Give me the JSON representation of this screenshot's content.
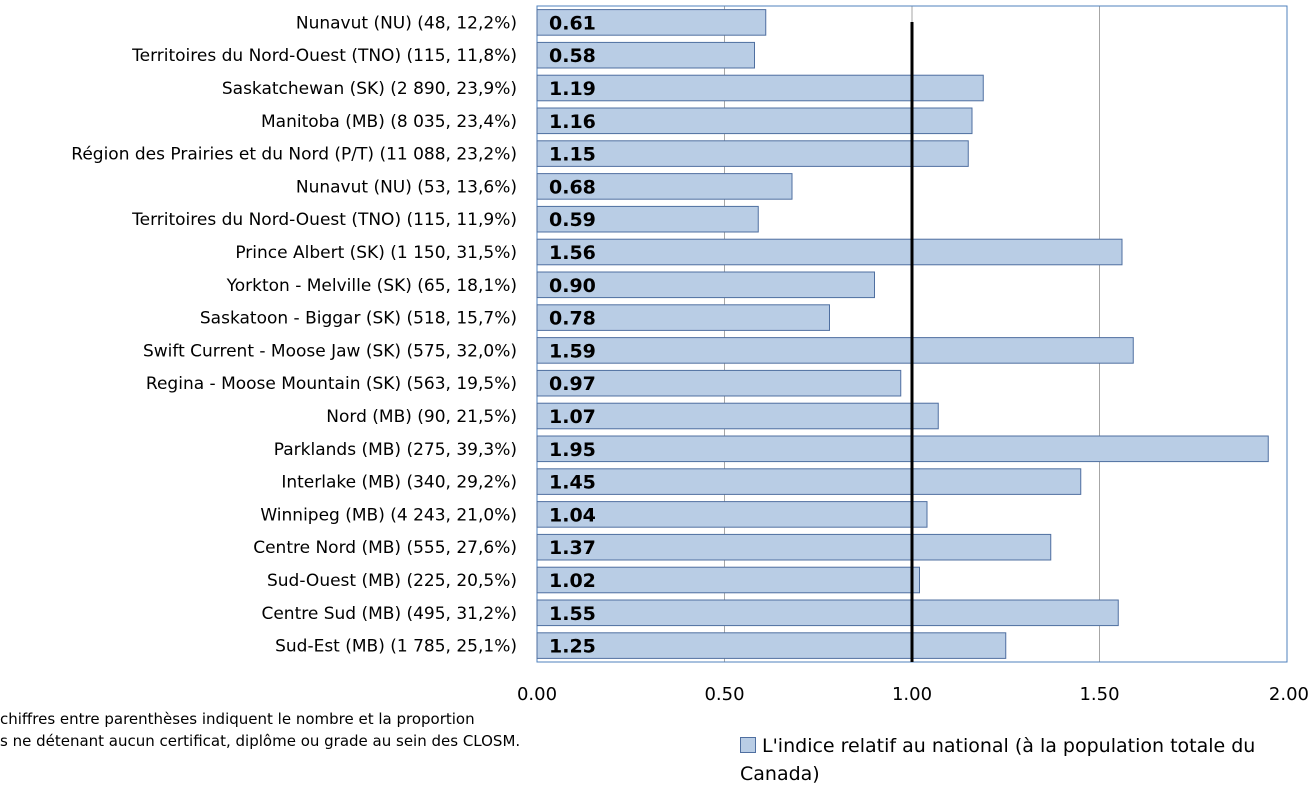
{
  "chart_data": {
    "type": "bar",
    "orientation": "horizontal",
    "categories": [
      "Nunavut (NU) (48, 12,2%)",
      "Territoires du Nord-Ouest (TNO) (115, 11,8%)",
      "Saskatchewan (SK) (2 890, 23,9%)",
      "Manitoba (MB) (8 035, 23,4%)",
      "Région des Prairies et du Nord (P/T) (11 088, 23,2%)",
      "Nunavut (NU) (53, 13,6%)",
      "Territoires du Nord-Ouest (TNO) (115, 11,9%)",
      "Prince Albert (SK) (1 150, 31,5%)",
      "Yorkton - Melville (SK) (65, 18,1%)",
      "Saskatoon - Biggar (SK) (518, 15,7%)",
      "Swift Current - Moose Jaw (SK) (575, 32,0%)",
      "Regina - Moose Mountain (SK) (563, 19,5%)",
      "Nord (MB) (90, 21,5%)",
      "Parklands (MB) (275, 39,3%)",
      "Interlake (MB) (340, 29,2%)",
      "Winnipeg (MB) (4 243, 21,0%)",
      "Centre Nord (MB) (555, 27,6%)",
      "Sud-Ouest (MB) (225, 20,5%)",
      "Centre Sud (MB) (495, 31,2%)",
      "Sud-Est (MB) (1 785, 25,1%)"
    ],
    "values": [
      0.61,
      0.58,
      1.19,
      1.16,
      1.15,
      0.68,
      0.59,
      1.56,
      0.9,
      0.78,
      1.59,
      0.97,
      1.07,
      1.95,
      1.45,
      1.04,
      1.37,
      1.02,
      1.55,
      1.25
    ],
    "value_labels": [
      "0.61",
      "0.58",
      "1.19",
      "1.16",
      "1.15",
      "0.68",
      "0.59",
      "1.56",
      "0.90",
      "0.78",
      "1.59",
      "0.97",
      "1.07",
      "1.95",
      "1.45",
      "1.04",
      "1.37",
      "1.02",
      "1.55",
      "1.25"
    ],
    "xlim": [
      0,
      2
    ],
    "x_ticks": [
      0,
      0.5,
      1,
      1.5,
      2
    ],
    "x_tick_labels": [
      "0.00",
      "0.50",
      "1.00",
      "1.50",
      "2.00"
    ],
    "reference_line": 1.0,
    "grid": "vertical",
    "legend": {
      "position": "bottom-right",
      "entries": [
        "L'indice relatif au national (à la population totale du Canada)"
      ]
    },
    "colors": {
      "bar_fill": "#b9cde5",
      "bar_stroke": "#4f6fa0",
      "reference_line": "#000000",
      "grid": "#a6a6a6",
      "plot_border": "#4f81bd"
    }
  },
  "footnote": {
    "line1": "chiffres entre parenthèses indiquent le nombre et la proportion",
    "line2": "s ne détenant aucun certificat, diplôme ou grade au sein des CLOSM."
  }
}
